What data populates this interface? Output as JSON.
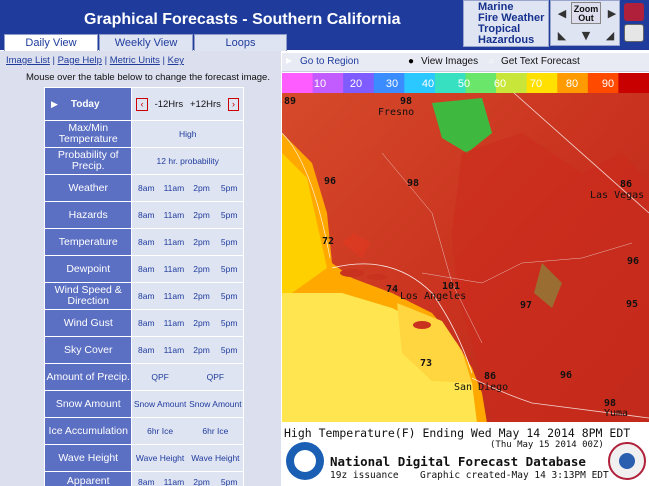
{
  "header": {
    "title": "Graphical Forecasts - Southern California",
    "hazard_links": [
      "Marine",
      "Fire Weather",
      "Tropical",
      "Hazardous"
    ],
    "zoom_label": "Zoom Out"
  },
  "tabs": [
    {
      "label": "Daily View",
      "active": true
    },
    {
      "label": "Weekly View",
      "active": false
    },
    {
      "label": "Loops",
      "active": false
    }
  ],
  "links": {
    "image_list": "Image List",
    "page_help": "Page Help",
    "metric_units": "Metric Units",
    "key": "Key",
    "sep": " | "
  },
  "hint": "Mouse over the table below to change the forecast image.",
  "table": {
    "today": "Today",
    "prev": "-12Hrs",
    "next": "+12Hrs",
    "rows": [
      {
        "label": "Max/Min Temperature",
        "cells": [
          "High"
        ]
      },
      {
        "label": "Probability of Precip.",
        "cells": [
          "12 hr. probability"
        ]
      },
      {
        "label": "Weather",
        "cells": [
          "8am",
          "11am",
          "2pm",
          "5pm"
        ]
      },
      {
        "label": "Hazards",
        "cells": [
          "8am",
          "11am",
          "2pm",
          "5pm"
        ]
      },
      {
        "label": "Temperature",
        "cells": [
          "8am",
          "11am",
          "2pm",
          "5pm"
        ]
      },
      {
        "label": "Dewpoint",
        "cells": [
          "8am",
          "11am",
          "2pm",
          "5pm"
        ]
      },
      {
        "label": "Wind Speed & Direction",
        "cells": [
          "8am",
          "11am",
          "2pm",
          "5pm"
        ]
      },
      {
        "label": "Wind Gust",
        "cells": [
          "8am",
          "11am",
          "2pm",
          "5pm"
        ]
      },
      {
        "label": "Sky Cover",
        "cells": [
          "8am",
          "11am",
          "2pm",
          "5pm"
        ]
      },
      {
        "label": "Amount of Precip.",
        "cells": [
          "QPF",
          "QPF"
        ]
      },
      {
        "label": "Snow Amount",
        "cells": [
          "Snow Amount",
          "Snow Amount"
        ]
      },
      {
        "label": "Ice Accumulation",
        "cells": [
          "6hr Ice",
          "6hr Ice"
        ]
      },
      {
        "label": "Wave Height",
        "cells": [
          "Wave Height",
          "Wave Height"
        ]
      },
      {
        "label": "Apparent",
        "cells": [
          "8am",
          "11am",
          "2pm",
          "5pm"
        ]
      }
    ]
  },
  "mapbar": {
    "region": "Go to Region",
    "view_images": "View Images",
    "text_forecast": "Get Text Forecast",
    "selected": "View Images"
  },
  "colorbar": {
    "ticks": [
      "10",
      "20",
      "30",
      "40",
      "50",
      "60",
      "70",
      "80",
      "90"
    ],
    "colors": [
      "#ff5cff",
      "#c25cff",
      "#7f5cff",
      "#3a8cff",
      "#2ac8ff",
      "#37e0c0",
      "#6ae66a",
      "#c8e63a",
      "#ffe000",
      "#ff9a00",
      "#ff4a00",
      "#c80000"
    ]
  },
  "map": {
    "places": [
      {
        "name": "Fresno",
        "temp": "98"
      },
      {
        "name": "Las Vegas",
        "temp": "86"
      },
      {
        "name": "Los Angeles",
        "temp": "101"
      },
      {
        "name": "San Diego",
        "temp": "86"
      },
      {
        "name": "Yuma",
        "temp": "98"
      }
    ],
    "temps": [
      "89",
      "96",
      "98",
      "72",
      "74",
      "97",
      "96",
      "95",
      "73",
      "96"
    ],
    "title": "High Temperature(F) Ending Wed May 14 2014  8PM EDT",
    "subtitle": "(Thu May 15 2014 00Z)",
    "database": "National Digital Forecast Database",
    "issuance": "19z issuance",
    "created": "Graphic created-May 14  3:13PM EDT"
  }
}
